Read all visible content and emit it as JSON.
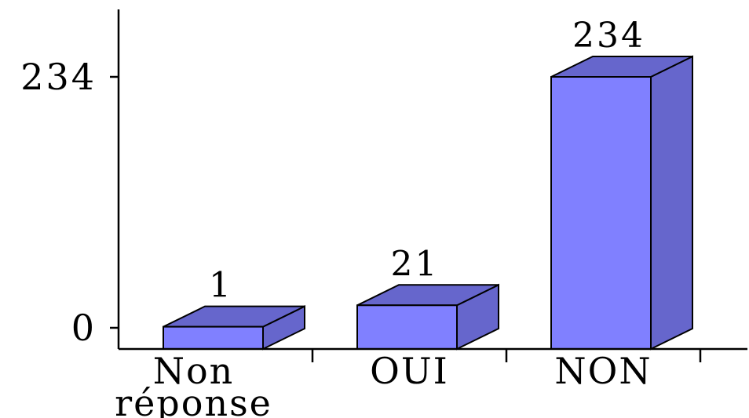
{
  "chart_data": {
    "type": "bar",
    "categories": [
      [
        "Non",
        "réponse"
      ],
      [
        "OUI"
      ],
      [
        "NON"
      ]
    ],
    "values": [
      1,
      21,
      234
    ],
    "data_labels": [
      "1",
      "21",
      "234"
    ],
    "yticks": [
      0,
      234
    ],
    "ytick_labels": [
      "0",
      "234"
    ],
    "ylim": [
      0,
      234
    ],
    "colors": {
      "front": "#8080ff",
      "top": "#6666cc",
      "side": "#6666cc"
    },
    "grid": false,
    "three_d": true
  }
}
